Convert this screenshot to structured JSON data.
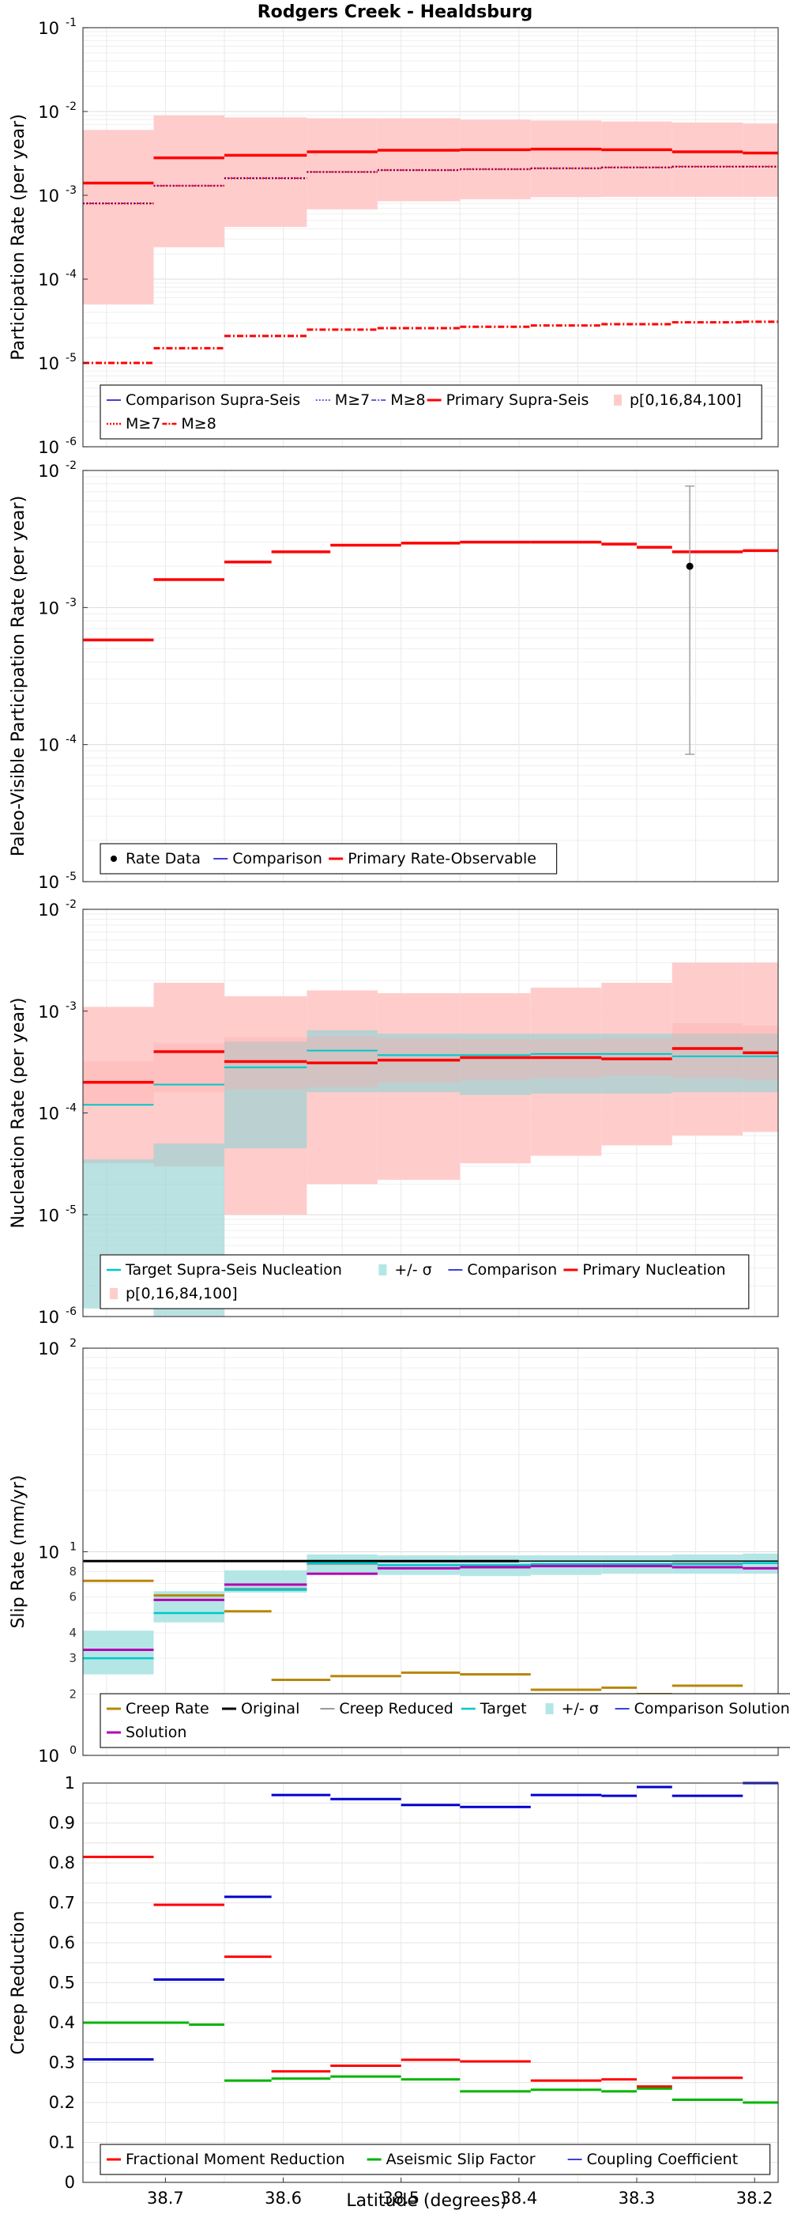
{
  "title": "Rodgers Creek - Healdsburg",
  "x_axis": {
    "label": "Latitude (degrees)",
    "reversed": true,
    "range": [
      38.18,
      38.77
    ],
    "ticks": [
      "38.7",
      "38.6",
      "38.5",
      "38.4",
      "38.3",
      "38.2"
    ]
  },
  "colors": {
    "primary": "#ff0000",
    "comparison": "#0000cc",
    "target": "#00c8c8",
    "sigma_fill": "#b4e6e6",
    "band_fill": "#ffcccc",
    "creep": "#b8860b",
    "solution": "#b400b4",
    "aseismic": "#00b400",
    "grey": "#999999",
    "original": "#000000"
  },
  "chart_data": [
    {
      "id": "participation",
      "type": "line",
      "ylabel": "Participation Rate (per year)",
      "yscale": "log",
      "ylim": [
        1e-06,
        0.1
      ],
      "yticks": [
        {
          "base": "10",
          "exp": "-6"
        },
        {
          "base": "10",
          "exp": "-5"
        },
        {
          "base": "10",
          "exp": "-4"
        },
        {
          "base": "10",
          "exp": "-3"
        },
        {
          "base": "10",
          "exp": "-2"
        },
        {
          "base": "10",
          "exp": "-1"
        }
      ],
      "sections": [
        [
          38.77,
          38.71
        ],
        [
          38.71,
          38.65
        ],
        [
          38.65,
          38.58
        ],
        [
          38.58,
          38.52
        ],
        [
          38.52,
          38.45
        ],
        [
          38.45,
          38.39
        ],
        [
          38.39,
          38.33
        ],
        [
          38.33,
          38.27
        ],
        [
          38.27,
          38.21
        ],
        [
          38.21,
          38.18
        ]
      ],
      "band": {
        "lo": [
          5e-05,
          0.00024,
          0.00042,
          0.00068,
          0.00085,
          0.0009,
          0.00095,
          0.00096,
          0.00096,
          0.00096
        ],
        "hi": [
          0.006,
          0.009,
          0.0085,
          0.0083,
          0.0083,
          0.008,
          0.0078,
          0.0076,
          0.0074,
          0.0072
        ]
      },
      "series": [
        {
          "name": "Primary Supra-Seis",
          "values": [
            0.0014,
            0.0028,
            0.003,
            0.0033,
            0.00345,
            0.0035,
            0.00355,
            0.0035,
            0.0033,
            0.0032
          ]
        },
        {
          "name": "M≥7",
          "values": [
            0.0008,
            0.0013,
            0.0016,
            0.0019,
            0.002,
            0.00205,
            0.0021,
            0.00215,
            0.0022,
            0.0022
          ]
        },
        {
          "name": "M≥8",
          "values": [
            1e-05,
            1.5e-05,
            2.1e-05,
            2.5e-05,
            2.6e-05,
            2.7e-05,
            2.8e-05,
            2.9e-05,
            3.05e-05,
            3.1e-05
          ]
        }
      ],
      "legend_rows": [
        [
          {
            "label": "Comparison Supra-Seis",
            "kind": "cmp"
          },
          {
            "label": "M≥7",
            "kind": "cmp7"
          },
          {
            "label": "M≥8",
            "kind": "cmp8"
          },
          {
            "label": "Primary Supra-Seis",
            "kind": "primary"
          },
          {
            "label": "p[0,16,84,100]",
            "kind": "band"
          }
        ],
        [
          {
            "label": "M≥7",
            "kind": "pri7"
          },
          {
            "label": "M≥8",
            "kind": "pri8"
          }
        ]
      ]
    },
    {
      "id": "paleo",
      "type": "line",
      "ylabel": "Paleo-Visible Participation Rate (per year)",
      "yscale": "log",
      "ylim": [
        1e-05,
        0.01
      ],
      "yticks": [
        {
          "base": "10",
          "exp": "-5"
        },
        {
          "base": "10",
          "exp": "-4"
        },
        {
          "base": "10",
          "exp": "-3"
        },
        {
          "base": "10",
          "exp": "-2"
        }
      ],
      "sections": [
        [
          38.77,
          38.71
        ],
        [
          38.71,
          38.65
        ],
        [
          38.65,
          38.58
        ],
        [
          38.58,
          38.52
        ],
        [
          38.52,
          38.45
        ],
        [
          38.45,
          38.39
        ],
        [
          38.39,
          38.33
        ],
        [
          38.33,
          38.27
        ],
        [
          38.27,
          38.21
        ],
        [
          38.21,
          38.18
        ]
      ],
      "series": [
        {
          "name": "Primary Rate-Observable",
          "values": [
            0.00058,
            0.0016,
            0.00215,
            0.00255,
            0.00285,
            0.00295,
            0.003,
            0.003,
            0.0029,
            0.00275,
            0.00255,
            0.0026
          ]
        }
      ],
      "paleo_sections": [
        [
          38.77,
          38.71
        ],
        [
          38.71,
          38.65
        ],
        [
          38.65,
          38.61
        ],
        [
          38.61,
          38.56
        ],
        [
          38.56,
          38.5
        ],
        [
          38.5,
          38.45
        ],
        [
          38.45,
          38.39
        ],
        [
          38.39,
          38.33
        ],
        [
          38.33,
          38.3
        ],
        [
          38.3,
          38.27
        ],
        [
          38.27,
          38.21
        ],
        [
          38.21,
          38.18
        ]
      ],
      "rate_data": {
        "x": 38.255,
        "value": 0.002,
        "lo": 8.5e-05,
        "hi": 0.0077
      },
      "legend_rows": [
        [
          {
            "label": "Rate Data",
            "kind": "dot"
          },
          {
            "label": "Comparison",
            "kind": "cmp"
          },
          {
            "label": "Primary Rate-Observable",
            "kind": "primary"
          }
        ]
      ]
    },
    {
      "id": "nucleation",
      "type": "line",
      "ylabel": "Nucleation Rate (per year)",
      "yscale": "log",
      "ylim": [
        1e-06,
        0.01
      ],
      "yticks": [
        {
          "base": "10",
          "exp": "-6"
        },
        {
          "base": "10",
          "exp": "-5"
        },
        {
          "base": "10",
          "exp": "-4"
        },
        {
          "base": "10",
          "exp": "-3"
        },
        {
          "base": "10",
          "exp": "-2"
        }
      ],
      "sections": [
        [
          38.77,
          38.71
        ],
        [
          38.71,
          38.65
        ],
        [
          38.65,
          38.58
        ],
        [
          38.58,
          38.52
        ],
        [
          38.52,
          38.45
        ],
        [
          38.45,
          38.39
        ],
        [
          38.39,
          38.33
        ],
        [
          38.33,
          38.27
        ],
        [
          38.27,
          38.21
        ],
        [
          38.21,
          38.18
        ]
      ],
      "band": {
        "lo": [
          3.2e-05,
          3e-05,
          1e-05,
          2e-05,
          2.2e-05,
          3.2e-05,
          3.8e-05,
          4.8e-05,
          6e-05,
          6.5e-05
        ],
        "hi": [
          0.0011,
          0.0019,
          0.0014,
          0.0016,
          0.0015,
          0.0015,
          0.0017,
          0.0019,
          0.003,
          0.003
        ]
      },
      "inner_band": {
        "lo": [
          0.00012,
          0.00016,
          0.00017,
          0.00018,
          0.0002,
          0.00021,
          0.00022,
          0.00023,
          0.00022,
          0.00021
        ],
        "hi": [
          0.00032,
          0.00048,
          0.00055,
          0.00056,
          0.00054,
          0.00053,
          0.00053,
          0.00054,
          0.00076,
          0.00072
        ]
      },
      "sigma": {
        "lo": [
          1.2e-06,
          1e-06,
          4.5e-05,
          0.00016,
          0.00016,
          0.00015,
          0.000155,
          0.000155,
          0.00016,
          0.00016
        ],
        "hi": [
          3.5e-05,
          5e-05,
          0.0005,
          0.00065,
          0.0006,
          0.0006,
          0.0006,
          0.0006,
          0.0006,
          0.0006
        ]
      },
      "series": [
        {
          "name": "Target Supra-Seis Nucleation",
          "values": [
            0.00012,
            0.00019,
            0.00028,
            0.00041,
            0.00037,
            0.00037,
            0.00038,
            0.00038,
            0.00036,
            0.00036
          ]
        },
        {
          "name": "Primary Nucleation",
          "values": [
            0.0002,
            0.0004,
            0.00032,
            0.00031,
            0.00033,
            0.00035,
            0.00035,
            0.00034,
            0.00043,
            0.00039
          ]
        }
      ],
      "legend_rows": [
        [
          {
            "label": "Target Supra-Seis Nucleation",
            "kind": "target"
          },
          {
            "label": "+/- σ",
            "kind": "sigma"
          },
          {
            "label": "Comparison",
            "kind": "cmp"
          },
          {
            "label": "Primary Nucleation",
            "kind": "primary"
          }
        ],
        [
          {
            "label": "p[0,16,84,100]",
            "kind": "band"
          }
        ]
      ]
    },
    {
      "id": "slip",
      "type": "line",
      "ylabel": "Slip Rate (mm/yr)",
      "yscale": "log",
      "ylim": [
        1,
        100
      ],
      "yticks": [
        {
          "base": "10",
          "exp": "0"
        },
        {
          "base": "10",
          "exp": "1"
        },
        {
          "base": "10",
          "exp": "2"
        }
      ],
      "minor_labels": [
        "2",
        "3",
        "4",
        "6",
        "8"
      ],
      "sections": [
        [
          38.77,
          38.71
        ],
        [
          38.71,
          38.65
        ],
        [
          38.65,
          38.58
        ],
        [
          38.58,
          38.52
        ],
        [
          38.52,
          38.45
        ],
        [
          38.45,
          38.39
        ],
        [
          38.39,
          38.33
        ],
        [
          38.33,
          38.27
        ],
        [
          38.27,
          38.21
        ],
        [
          38.21,
          38.18
        ]
      ],
      "creep_sections": [
        [
          38.77,
          38.71
        ],
        [
          38.71,
          38.65
        ],
        [
          38.65,
          38.61
        ],
        [
          38.61,
          38.56
        ],
        [
          38.56,
          38.5
        ],
        [
          38.5,
          38.45
        ],
        [
          38.45,
          38.39
        ],
        [
          38.39,
          38.33
        ],
        [
          38.33,
          38.3
        ],
        [
          38.3,
          38.27
        ],
        [
          38.27,
          38.21
        ],
        [
          38.21,
          38.18
        ]
      ],
      "original": 9.0,
      "sigma": {
        "lo": [
          2.5,
          4.5,
          6.3,
          7.8,
          7.7,
          7.6,
          7.7,
          7.8,
          7.8,
          7.8
        ],
        "hi": [
          4.1,
          6.4,
          8.1,
          9.7,
          9.6,
          9.6,
          9.6,
          9.6,
          9.7,
          9.8
        ]
      },
      "series": [
        {
          "name": "Creep Rate",
          "values": [
            7.2,
            6.1,
            5.1,
            2.35,
            2.45,
            2.55,
            2.5,
            2.1,
            2.15,
            2.0,
            2.2,
            1.75
          ]
        },
        {
          "name": "Creep Reduced",
          "values": [
            3.0,
            5.0,
            6.6,
            8.7,
            8.6,
            8.6,
            8.7,
            8.7,
            8.8,
            8.8
          ]
        },
        {
          "name": "Target",
          "values": [
            3.0,
            5.0,
            6.5,
            8.8,
            8.6,
            8.6,
            8.7,
            8.7,
            8.7,
            8.8
          ]
        },
        {
          "name": "Solution",
          "values": [
            3.3,
            5.8,
            6.9,
            7.8,
            8.3,
            8.4,
            8.5,
            8.5,
            8.4,
            8.3
          ]
        }
      ],
      "legend_rows": [
        [
          {
            "label": "Creep Rate",
            "kind": "creep"
          },
          {
            "label": "Original",
            "kind": "original"
          },
          {
            "label": "Creep Reduced",
            "kind": "grey"
          },
          {
            "label": "Target",
            "kind": "target"
          },
          {
            "label": "+/- σ",
            "kind": "sigma"
          },
          {
            "label": "Comparison Solution",
            "kind": "cmp"
          }
        ],
        [
          {
            "label": "Solution",
            "kind": "solution"
          }
        ]
      ]
    },
    {
      "id": "creep",
      "type": "line",
      "ylabel": "Creep Reduction",
      "yscale": "linear",
      "ylim": [
        0,
        1
      ],
      "yticks": [
        "0",
        "0.1",
        "0.2",
        "0.3",
        "0.4",
        "0.5",
        "0.6",
        "0.7",
        "0.8",
        "0.9",
        "1"
      ],
      "sections": [
        [
          38.77,
          38.71
        ],
        [
          38.71,
          38.65
        ],
        [
          38.65,
          38.61
        ],
        [
          38.61,
          38.56
        ],
        [
          38.56,
          38.5
        ],
        [
          38.5,
          38.45
        ],
        [
          38.45,
          38.39
        ],
        [
          38.39,
          38.33
        ],
        [
          38.33,
          38.3
        ],
        [
          38.3,
          38.27
        ],
        [
          38.27,
          38.21
        ],
        [
          38.21,
          38.18
        ]
      ],
      "series": [
        {
          "name": "Fractional Moment Reduction",
          "values": [
            0.815,
            0.695,
            0.565,
            0.278,
            0.292,
            0.307,
            0.303,
            0.255,
            0.258,
            0.24,
            0.262,
            null
          ]
        },
        {
          "name": "Aseismic Slip Factor",
          "values": [
            0.4,
            0.4,
            0.395,
            0.255,
            0.26,
            0.265,
            0.258,
            0.228,
            0.232,
            0.228,
            0.235,
            0.207,
            0.2
          ]
        },
        {
          "name": "Coupling Coefficient",
          "values": [
            0.308,
            0.508,
            0.715,
            0.97,
            0.96,
            0.945,
            0.94,
            0.97,
            0.968,
            0.99,
            0.968,
            1.0
          ]
        }
      ],
      "aseismic_sections": [
        [
          38.77,
          38.71
        ],
        [
          38.71,
          38.68
        ],
        [
          38.68,
          38.65
        ],
        [
          38.65,
          38.61
        ],
        [
          38.61,
          38.56
        ],
        [
          38.56,
          38.5
        ],
        [
          38.5,
          38.45
        ],
        [
          38.45,
          38.39
        ],
        [
          38.39,
          38.33
        ],
        [
          38.33,
          38.3
        ],
        [
          38.3,
          38.27
        ],
        [
          38.27,
          38.21
        ],
        [
          38.21,
          38.18
        ]
      ],
      "legend_rows": [
        [
          {
            "label": "Fractional Moment Reduction",
            "kind": "primary"
          },
          {
            "label": "Aseismic Slip Factor",
            "kind": "aseismic"
          },
          {
            "label": "Coupling Coefficient",
            "kind": "cmp"
          }
        ]
      ]
    }
  ]
}
